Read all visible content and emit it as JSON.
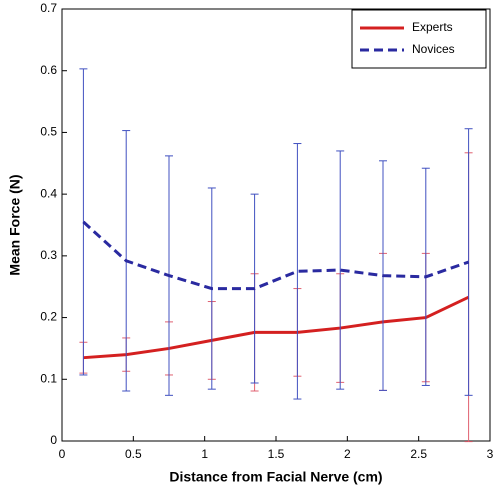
{
  "chart_data": {
    "type": "line",
    "x_label": "Distance from Facial Nerve (cm)",
    "y_label": "Mean Force (N)",
    "x": [
      0.15,
      0.45,
      0.75,
      1.05,
      1.35,
      1.65,
      1.95,
      2.25,
      2.55,
      2.85
    ],
    "series": [
      {
        "name": "Experts",
        "color": "#d42020",
        "bar_color": "#e06070",
        "linestyle": "solid",
        "values": [
          0.135,
          0.14,
          0.15,
          0.163,
          0.176,
          0.176,
          0.183,
          0.193,
          0.2,
          0.233
        ],
        "errors": [
          0.025,
          0.027,
          0.043,
          0.063,
          0.095,
          0.071,
          0.088,
          0.111,
          0.104,
          0.234
        ]
      },
      {
        "name": "Novices",
        "color": "#2a2aa0",
        "bar_color": "#4050c0",
        "linestyle": "dashed",
        "values": [
          0.355,
          0.292,
          0.268,
          0.247,
          0.247,
          0.275,
          0.277,
          0.268,
          0.266,
          0.29
        ],
        "errors": [
          0.248,
          0.211,
          0.194,
          0.163,
          0.153,
          0.207,
          0.193,
          0.186,
          0.176,
          0.216
        ]
      }
    ],
    "xlim": [
      0,
      3
    ],
    "xticks": [
      0,
      0.5,
      1,
      1.5,
      2,
      2.5,
      3
    ],
    "ylim": [
      0,
      0.7
    ],
    "yticks": [
      0,
      0.1,
      0.2,
      0.3,
      0.4,
      0.5,
      0.6,
      0.7
    ],
    "legend": "upper-right",
    "grid": false
  }
}
